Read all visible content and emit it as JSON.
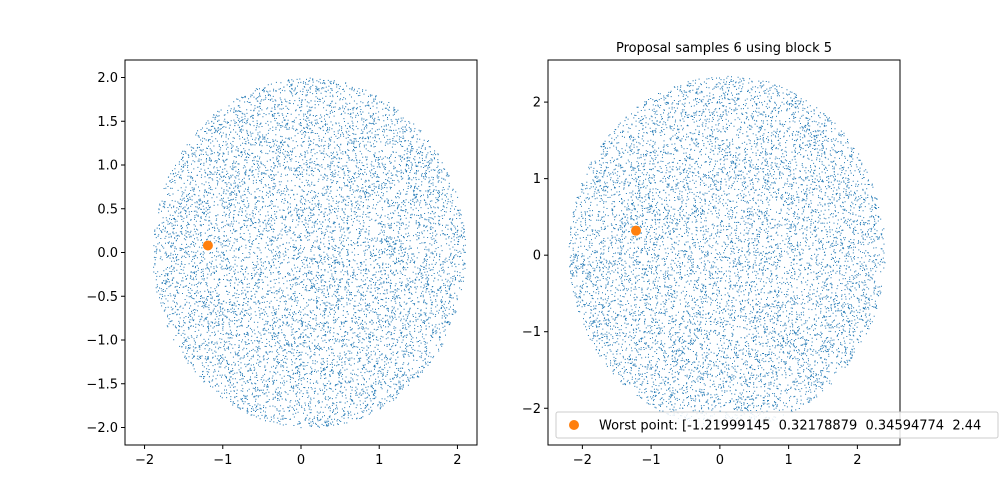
{
  "chart_data": [
    {
      "type": "scatter",
      "title": "",
      "xlabel": "",
      "ylabel": "",
      "xlim": [
        -2.25,
        2.25
      ],
      "ylim": [
        -2.2,
        2.2
      ],
      "xticks": [
        -2,
        -1,
        0,
        1,
        2
      ],
      "xtick_labels": [
        "−2",
        "−1",
        "0",
        "1",
        "2"
      ],
      "yticks": [
        -2.0,
        -1.5,
        -1.0,
        -0.5,
        0.0,
        0.5,
        1.0,
        1.5,
        2.0
      ],
      "ytick_labels": [
        "−2.0",
        "−1.5",
        "−1.0",
        "−0.5",
        "0.0",
        "0.5",
        "1.0",
        "1.5",
        "2.0"
      ],
      "grid": false,
      "series": [
        {
          "kind": "cloud",
          "distribution": "uniform-disk",
          "center": [
            0.1,
            0.0
          ],
          "radius": 2.0,
          "count": 9000,
          "color": "#1f77b4"
        },
        {
          "kind": "points",
          "color": "#ff7f0e",
          "points": [
            [
              -1.19,
              0.08
            ]
          ]
        }
      ]
    },
    {
      "type": "scatter",
      "title": "Proposal samples 6 using block 5",
      "xlabel": "",
      "ylabel": "",
      "xlim": [
        -2.5,
        2.62
      ],
      "ylim": [
        -2.48,
        2.55
      ],
      "xticks": [
        -2,
        -1,
        0,
        1,
        2
      ],
      "xtick_labels": [
        "−2",
        "−1",
        "0",
        "1",
        "2"
      ],
      "yticks": [
        -2,
        -1,
        0,
        1,
        2
      ],
      "ytick_labels": [
        "−2",
        "−1",
        "0",
        "1",
        "2"
      ],
      "grid": false,
      "legend": {
        "placement": "lower-left",
        "entries": [
          {
            "name": "Worst point: [-1.21999145  0.32178879  0.34594774  2.44",
            "color": "#ff7f0e"
          }
        ]
      },
      "series": [
        {
          "kind": "cloud",
          "distribution": "uniform-disk",
          "center": [
            0.1,
            0.05
          ],
          "radius": 2.3,
          "count": 9000,
          "color": "#1f77b4"
        },
        {
          "kind": "points",
          "name": "Worst point: [-1.21999145  0.32178879  0.34594774  2.44",
          "color": "#ff7f0e",
          "points": [
            [
              -1.22,
              0.32
            ]
          ]
        }
      ]
    }
  ]
}
